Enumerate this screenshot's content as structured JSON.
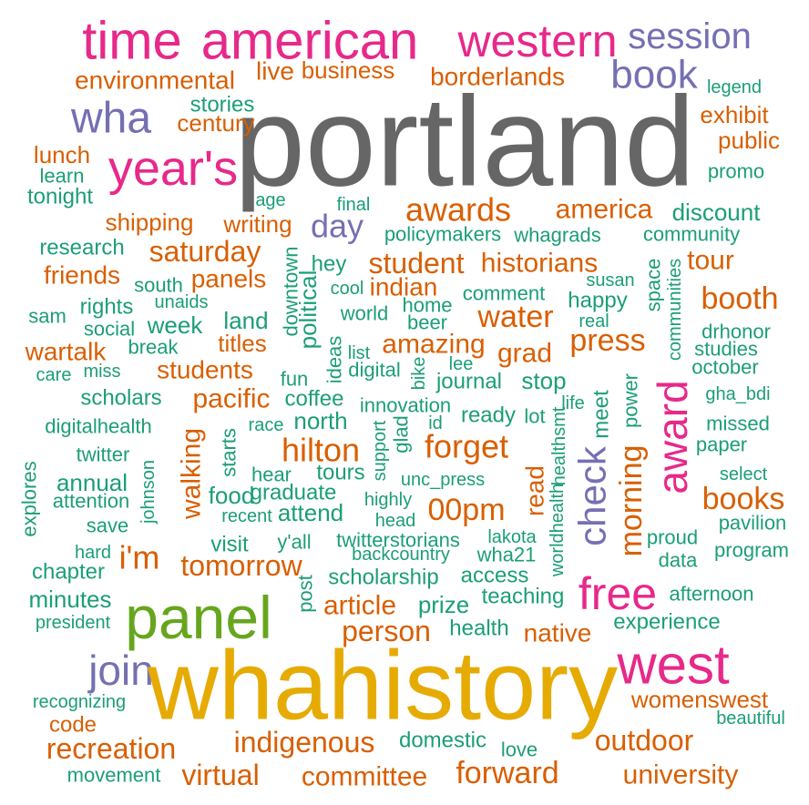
{
  "words": [
    {
      "text": "time",
      "color": "#e7298a"
    },
    {
      "text": "american",
      "color": "#e7298a"
    },
    {
      "text": "western",
      "color": "#e7298a"
    },
    {
      "text": "session",
      "color": "#7570b3"
    },
    {
      "text": "environmental",
      "color": "#d95f02"
    },
    {
      "text": "live",
      "color": "#d95f02"
    },
    {
      "text": "business",
      "color": "#d95f02"
    },
    {
      "text": "borderlands",
      "color": "#d95f02"
    },
    {
      "text": "book",
      "color": "#7570b3"
    },
    {
      "text": "legend",
      "color": "#1b9e77"
    },
    {
      "text": "portland",
      "color": "#666666"
    },
    {
      "text": "wha",
      "color": "#7570b3"
    },
    {
      "text": "stories",
      "color": "#1b9e77"
    },
    {
      "text": "century",
      "color": "#d95f02"
    },
    {
      "text": "exhibit",
      "color": "#d95f02"
    },
    {
      "text": "public",
      "color": "#d95f02"
    },
    {
      "text": "year's",
      "color": "#e7298a"
    },
    {
      "text": "lunch",
      "color": "#d95f02"
    },
    {
      "text": "learn",
      "color": "#1b9e77"
    },
    {
      "text": "promo",
      "color": "#1b9e77"
    },
    {
      "text": "tonight",
      "color": "#1b9e77"
    },
    {
      "text": "age",
      "color": "#1b9e77"
    },
    {
      "text": "final",
      "color": "#1b9e77"
    },
    {
      "text": "awards",
      "color": "#d95f02"
    },
    {
      "text": "america",
      "color": "#d95f02"
    },
    {
      "text": "discount",
      "color": "#1b9e77"
    },
    {
      "text": "shipping",
      "color": "#d95f02"
    },
    {
      "text": "writing",
      "color": "#d95f02"
    },
    {
      "text": "day",
      "color": "#7570b3"
    },
    {
      "text": "policymakers",
      "color": "#1b9e77"
    },
    {
      "text": "whagrads",
      "color": "#1b9e77"
    },
    {
      "text": "community",
      "color": "#1b9e77"
    },
    {
      "text": "research",
      "color": "#1b9e77"
    },
    {
      "text": "saturday",
      "color": "#d95f02"
    },
    {
      "text": "tour",
      "color": "#d95f02"
    },
    {
      "text": "friends",
      "color": "#d95f02"
    },
    {
      "text": "hey",
      "color": "#1b9e77"
    },
    {
      "text": "student",
      "color": "#d95f02"
    },
    {
      "text": "historians",
      "color": "#d95f02"
    },
    {
      "text": "south",
      "color": "#1b9e77"
    },
    {
      "text": "panels",
      "color": "#d95f02"
    },
    {
      "text": "susan",
      "color": "#1b9e77"
    },
    {
      "text": "downtown",
      "color": "#1b9e77"
    },
    {
      "text": "political",
      "color": "#1b9e77"
    },
    {
      "text": "cool",
      "color": "#1b9e77"
    },
    {
      "text": "indian",
      "color": "#d95f02"
    },
    {
      "text": "comment",
      "color": "#1b9e77"
    },
    {
      "text": "space",
      "color": "#1b9e77"
    },
    {
      "text": "communities",
      "color": "#1b9e77"
    },
    {
      "text": "booth",
      "color": "#d95f02"
    },
    {
      "text": "rights",
      "color": "#1b9e77"
    },
    {
      "text": "unaids",
      "color": "#1b9e77"
    },
    {
      "text": "home",
      "color": "#1b9e77"
    },
    {
      "text": "happy",
      "color": "#1b9e77"
    },
    {
      "text": "sam",
      "color": "#1b9e77"
    },
    {
      "text": "social",
      "color": "#1b9e77"
    },
    {
      "text": "week",
      "color": "#1b9e77"
    },
    {
      "text": "land",
      "color": "#1b9e77"
    },
    {
      "text": "world",
      "color": "#1b9e77"
    },
    {
      "text": "beer",
      "color": "#1b9e77"
    },
    {
      "text": "water",
      "color": "#d95f02"
    },
    {
      "text": "real",
      "color": "#1b9e77"
    },
    {
      "text": "drhonor",
      "color": "#1b9e77"
    },
    {
      "text": "break",
      "color": "#1b9e77"
    },
    {
      "text": "titles",
      "color": "#d95f02"
    },
    {
      "text": "list",
      "color": "#1b9e77"
    },
    {
      "text": "ideas",
      "color": "#1b9e77"
    },
    {
      "text": "amazing",
      "color": "#d95f02"
    },
    {
      "text": "grad",
      "color": "#d95f02"
    },
    {
      "text": "press",
      "color": "#d95f02"
    },
    {
      "text": "studies",
      "color": "#1b9e77"
    },
    {
      "text": "wartalk",
      "color": "#d95f02"
    },
    {
      "text": "care",
      "color": "#1b9e77"
    },
    {
      "text": "miss",
      "color": "#1b9e77"
    },
    {
      "text": "students",
      "color": "#d95f02"
    },
    {
      "text": "digital",
      "color": "#1b9e77"
    },
    {
      "text": "lee",
      "color": "#1b9e77"
    },
    {
      "text": "bike",
      "color": "#1b9e77"
    },
    {
      "text": "october",
      "color": "#1b9e77"
    },
    {
      "text": "fun",
      "color": "#1b9e77"
    },
    {
      "text": "journal",
      "color": "#1b9e77"
    },
    {
      "text": "stop",
      "color": "#1b9e77"
    },
    {
      "text": "scholars",
      "color": "#1b9e77"
    },
    {
      "text": "pacific",
      "color": "#d95f02"
    },
    {
      "text": "coffee",
      "color": "#1b9e77"
    },
    {
      "text": "innovation",
      "color": "#1b9e77"
    },
    {
      "text": "life",
      "color": "#1b9e77"
    },
    {
      "text": "power",
      "color": "#1b9e77"
    },
    {
      "text": "gha_bdi",
      "color": "#1b9e77"
    },
    {
      "text": "meet",
      "color": "#1b9e77"
    },
    {
      "text": "award",
      "color": "#e7298a"
    },
    {
      "text": "digitalhealth",
      "color": "#1b9e77"
    },
    {
      "text": "race",
      "color": "#1b9e77"
    },
    {
      "text": "north",
      "color": "#1b9e77"
    },
    {
      "text": "glad",
      "color": "#1b9e77"
    },
    {
      "text": "id",
      "color": "#1b9e77"
    },
    {
      "text": "ready",
      "color": "#1b9e77"
    },
    {
      "text": "lot",
      "color": "#1b9e77"
    },
    {
      "text": "healthsmt",
      "color": "#1b9e77"
    },
    {
      "text": "missed",
      "color": "#1b9e77"
    },
    {
      "text": "support",
      "color": "#1b9e77"
    },
    {
      "text": "forget",
      "color": "#d95f02"
    },
    {
      "text": "hilton",
      "color": "#d95f02"
    },
    {
      "text": "twitter",
      "color": "#1b9e77"
    },
    {
      "text": "starts",
      "color": "#1b9e77"
    },
    {
      "text": "walking",
      "color": "#d95f02"
    },
    {
      "text": "johnson",
      "color": "#1b9e77"
    },
    {
      "text": "check",
      "color": "#7570b3"
    },
    {
      "text": "morning",
      "color": "#d95f02"
    },
    {
      "text": "paper",
      "color": "#1b9e77"
    },
    {
      "text": "explores",
      "color": "#1b9e77"
    },
    {
      "text": "hear",
      "color": "#1b9e77"
    },
    {
      "text": "tours",
      "color": "#1b9e77"
    },
    {
      "text": "unc_press",
      "color": "#1b9e77"
    },
    {
      "text": "select",
      "color": "#1b9e77"
    },
    {
      "text": "annual",
      "color": "#1b9e77"
    },
    {
      "text": "graduate",
      "color": "#1b9e77"
    },
    {
      "text": "read",
      "color": "#d95f02"
    },
    {
      "text": "attention",
      "color": "#1b9e77"
    },
    {
      "text": "food",
      "color": "#1b9e77"
    },
    {
      "text": "highly",
      "color": "#1b9e77"
    },
    {
      "text": "00pm",
      "color": "#d95f02"
    },
    {
      "text": "books",
      "color": "#d95f02"
    },
    {
      "text": "recent",
      "color": "#1b9e77"
    },
    {
      "text": "attend",
      "color": "#1b9e77"
    },
    {
      "text": "head",
      "color": "#1b9e77"
    },
    {
      "text": "save",
      "color": "#1b9e77"
    },
    {
      "text": "y'all",
      "color": "#1b9e77"
    },
    {
      "text": "twitterstorians",
      "color": "#1b9e77"
    },
    {
      "text": "lakota",
      "color": "#1b9e77"
    },
    {
      "text": "worldhealth",
      "color": "#1b9e77"
    },
    {
      "text": "proud",
      "color": "#1b9e77"
    },
    {
      "text": "pavilion",
      "color": "#1b9e77"
    },
    {
      "text": "visit",
      "color": "#1b9e77"
    },
    {
      "text": "i'm",
      "color": "#d95f02"
    },
    {
      "text": "hard",
      "color": "#1b9e77"
    },
    {
      "text": "backcountry",
      "color": "#1b9e77"
    },
    {
      "text": "wha21",
      "color": "#1b9e77"
    },
    {
      "text": "data",
      "color": "#1b9e77"
    },
    {
      "text": "program",
      "color": "#1b9e77"
    },
    {
      "text": "tomorrow",
      "color": "#d95f02"
    },
    {
      "text": "chapter",
      "color": "#1b9e77"
    },
    {
      "text": "post",
      "color": "#1b9e77"
    },
    {
      "text": "scholarship",
      "color": "#1b9e77"
    },
    {
      "text": "access",
      "color": "#1b9e77"
    },
    {
      "text": "free",
      "color": "#e7298a"
    },
    {
      "text": "minutes",
      "color": "#1b9e77"
    },
    {
      "text": "panel",
      "color": "#66a61e"
    },
    {
      "text": "article",
      "color": "#d95f02"
    },
    {
      "text": "prize",
      "color": "#1b9e77"
    },
    {
      "text": "teaching",
      "color": "#1b9e77"
    },
    {
      "text": "afternoon",
      "color": "#1b9e77"
    },
    {
      "text": "president",
      "color": "#1b9e77"
    },
    {
      "text": "person",
      "color": "#d95f02"
    },
    {
      "text": "health",
      "color": "#1b9e77"
    },
    {
      "text": "native",
      "color": "#d95f02"
    },
    {
      "text": "experience",
      "color": "#1b9e77"
    },
    {
      "text": "join",
      "color": "#7570b3"
    },
    {
      "text": "whahistory",
      "color": "#e6ab02"
    },
    {
      "text": "west",
      "color": "#e7298a"
    },
    {
      "text": "recognizing",
      "color": "#1b9e77"
    },
    {
      "text": "womenswest",
      "color": "#d95f02"
    },
    {
      "text": "code",
      "color": "#d95f02"
    },
    {
      "text": "beautiful",
      "color": "#1b9e77"
    },
    {
      "text": "indigenous",
      "color": "#d95f02"
    },
    {
      "text": "domestic",
      "color": "#1b9e77"
    },
    {
      "text": "outdoor",
      "color": "#d95f02"
    },
    {
      "text": "recreation",
      "color": "#d95f02"
    },
    {
      "text": "love",
      "color": "#1b9e77"
    },
    {
      "text": "movement",
      "color": "#1b9e77"
    },
    {
      "text": "virtual",
      "color": "#d95f02"
    },
    {
      "text": "committee",
      "color": "#d95f02"
    },
    {
      "text": "forward",
      "color": "#d95f02"
    },
    {
      "text": "university",
      "color": "#d95f02"
    }
  ]
}
